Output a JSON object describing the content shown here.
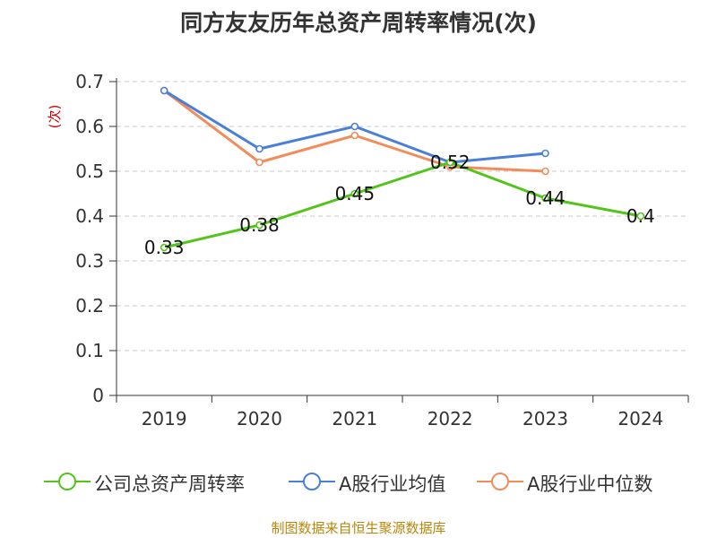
{
  "title": "同方友友历年总资产周转率情况(次)",
  "footer": "制图数据来自恒生聚源数据库",
  "chart_data": {
    "type": "line",
    "title": "同方友友历年总资产周转率情况(次)",
    "ylabel": "(次)",
    "xlabel": "",
    "categories": [
      "2019",
      "2020",
      "2021",
      "2022",
      "2023",
      "2024"
    ],
    "ylim": [
      0,
      0.7
    ],
    "yticks": [
      0,
      0.1,
      0.2,
      0.3,
      0.4,
      0.5,
      0.6,
      0.7
    ],
    "ytick_labels": [
      "0",
      "0.1",
      "0.2",
      "0.3",
      "0.4",
      "0.5",
      "0.6",
      "0.7"
    ],
    "grid": true,
    "legend_position": "bottom",
    "series": [
      {
        "name": "公司总资产周转率",
        "color": "#52c41a",
        "values": [
          0.33,
          0.38,
          0.45,
          0.52,
          0.44,
          0.4
        ],
        "labels": [
          "0.33",
          "0.38",
          "0.45",
          "0.52",
          "0.44",
          "0.4"
        ]
      },
      {
        "name": "A股行业均值",
        "color": "#4a7fd8",
        "values": [
          0.68,
          0.55,
          0.6,
          0.52,
          0.54,
          null
        ]
      },
      {
        "name": "A股行业中位数",
        "color": "#f28c5a",
        "values": [
          0.68,
          0.52,
          0.58,
          0.51,
          0.5,
          null
        ]
      }
    ]
  }
}
